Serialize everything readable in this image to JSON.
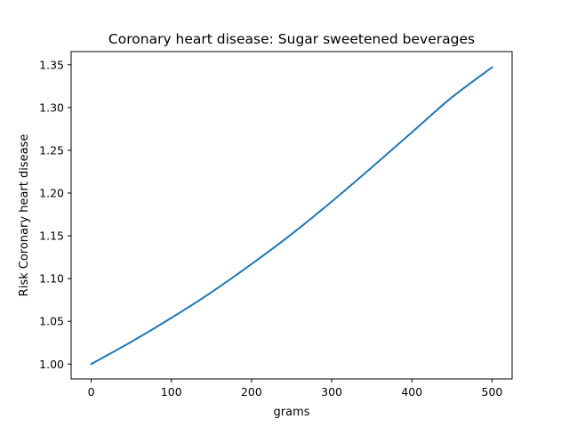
{
  "chart_data": {
    "type": "line",
    "title": "Coronary heart disease: Sugar sweetened beverages",
    "xlabel": "grams",
    "ylabel": "Risk Coronary heart disease",
    "xlim": [
      -25,
      525
    ],
    "ylim": [
      0.9826,
      1.3654
    ],
    "xticks": [
      0,
      100,
      200,
      300,
      400,
      500
    ],
    "yticks": [
      1.0,
      1.05,
      1.1,
      1.15,
      1.2,
      1.25,
      1.3,
      1.35
    ],
    "x": [
      0,
      50,
      100,
      150,
      200,
      250,
      300,
      350,
      400,
      450,
      500
    ],
    "series": [
      {
        "color": "#1f77b4",
        "values": [
          1.0,
          1.026,
          1.054,
          1.084,
          1.117,
          1.152,
          1.19,
          1.23,
          1.271,
          1.312,
          1.347
        ]
      }
    ],
    "grid": false,
    "legend": "none"
  }
}
